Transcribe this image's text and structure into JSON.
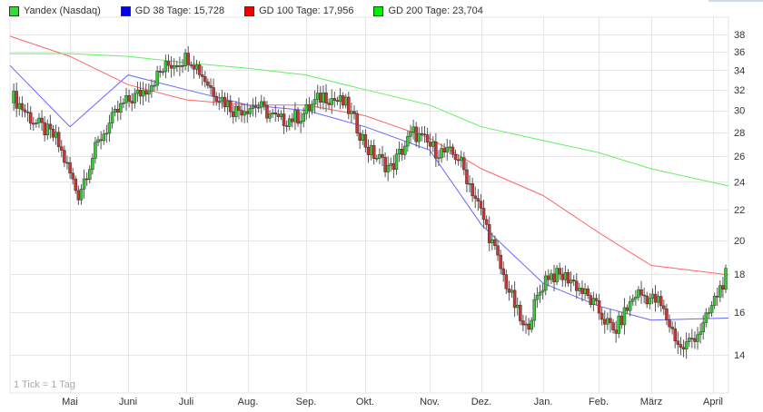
{
  "legend": [
    {
      "label": "Yandex (Nasdaq)",
      "color": "#33cc33"
    },
    {
      "label": "GD 38 Tage: 15,728",
      "color": "#0000ff"
    },
    {
      "label": "GD 100 Tage: 17,956",
      "color": "#ff0000"
    },
    {
      "label": "GD 200 Tage: 23,704",
      "color": "#00ee00"
    }
  ],
  "footnote": "1 Tick = 1 Tag",
  "colors": {
    "up_candle": "#33cc33",
    "down_candle": "#cc3333",
    "gd38": "#6666ff",
    "gd100": "#ff6666",
    "gd200": "#66ee66",
    "grid": "#e6e6e6"
  },
  "chart_data": {
    "type": "candlestick",
    "title": "Yandex (Nasdaq)",
    "xlabel": "",
    "ylabel": "",
    "yscale": "log",
    "ylim": [
      13.2,
      39.5
    ],
    "y_ticks": [
      14,
      16,
      18,
      20,
      22,
      24,
      26,
      28,
      30,
      32,
      34,
      36,
      38
    ],
    "x_ticks": [
      "Mai",
      "Juni",
      "Juli",
      "Aug.",
      "Sep.",
      "Okt.",
      "Nov.",
      "Dez.",
      "Jan.",
      "Feb.",
      "März",
      "April"
    ],
    "grid": true,
    "legend_position": "top",
    "annotation": "1 Tick = 1 Tag",
    "close_path": [
      [
        "Apr start",
        31.5
      ],
      [
        "Apr mid",
        29.0
      ],
      [
        "Apr end",
        27.5
      ],
      [
        "Mai early",
        23.0
      ],
      [
        "Mai mid",
        27.5
      ],
      [
        "Mai end",
        30.5
      ],
      [
        "Juni early",
        32.0
      ],
      [
        "Juni mid",
        34.5
      ],
      [
        "Juni end",
        35.5
      ],
      [
        "Juli early",
        32.0
      ],
      [
        "Juli mid",
        30.0
      ],
      [
        "Juli end",
        30.5
      ],
      [
        "Aug. mid",
        29.0
      ],
      [
        "Aug. end",
        29.5
      ],
      [
        "Sep. early",
        31.5
      ],
      [
        "Sep. mid",
        30.5
      ],
      [
        "Okt. early",
        26.5
      ],
      [
        "Okt. mid",
        25.0
      ],
      [
        "Okt. end",
        28.0
      ],
      [
        "Nov. mid",
        26.5
      ],
      [
        "Nov. end",
        26.0
      ],
      [
        "Dez. early",
        22.0
      ],
      [
        "Dez. mid",
        18.0
      ],
      [
        "Dez. low",
        15.0
      ],
      [
        "Jan. early",
        18.0
      ],
      [
        "Jan. end",
        17.8
      ],
      [
        "Feb. early",
        16.5
      ],
      [
        "Feb. mid",
        15.0
      ],
      [
        "Feb. end",
        17.0
      ],
      [
        "März early",
        16.5
      ],
      [
        "März mid",
        14.2
      ],
      [
        "März end",
        15.3
      ],
      [
        "April",
        17.9
      ]
    ],
    "series": [
      {
        "name": "GD 38 Tage",
        "last_value": 15.728,
        "values_at_ticks": [
          34.5,
          28.5,
          33.5,
          32.0,
          30.5,
          30.0,
          28.5,
          26.5,
          21.0,
          17.5,
          16.3,
          15.6,
          15.7
        ]
      },
      {
        "name": "GD 100 Tage",
        "last_value": 17.956,
        "values_at_ticks": [
          37.8,
          35.5,
          32.5,
          31.0,
          30.5,
          30.5,
          29.5,
          27.5,
          25.0,
          23.0,
          20.5,
          18.5,
          17.96
        ]
      },
      {
        "name": "GD 200 Tage",
        "last_value": 23.704,
        "values_at_ticks": [
          35.8,
          35.8,
          35.5,
          34.8,
          34.2,
          33.5,
          32.0,
          30.5,
          28.5,
          27.3,
          26.3,
          25.0,
          23.7
        ]
      }
    ]
  }
}
